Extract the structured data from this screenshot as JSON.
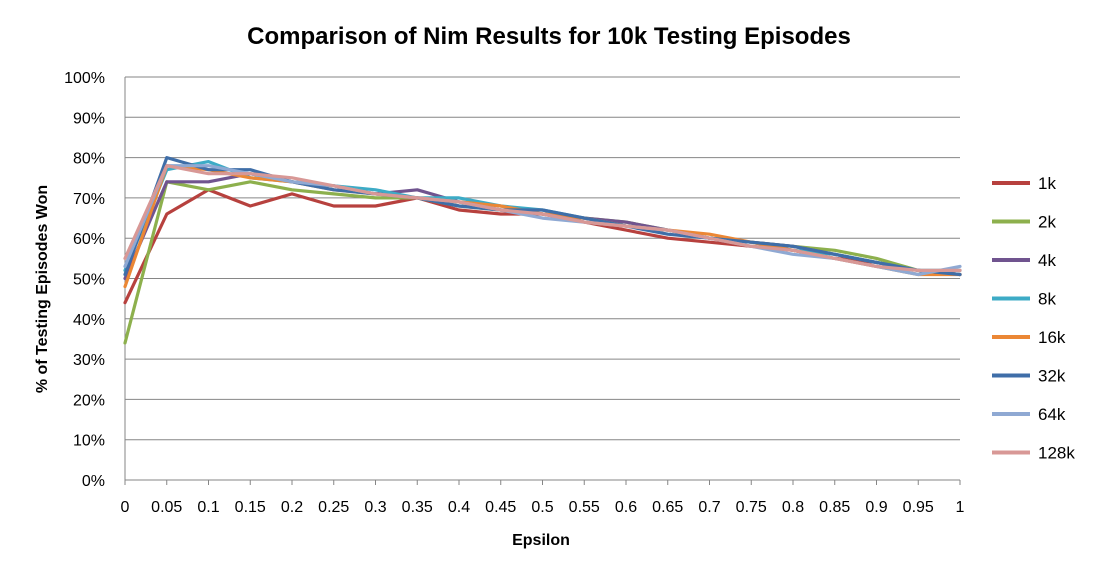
{
  "chart_data": {
    "type": "line",
    "title": "Comparison of Nim Results for 10k Testing Episodes",
    "xlabel": "Epsilon",
    "ylabel": "% of Testing Episodes Won",
    "xlim": [
      0,
      1
    ],
    "ylim": [
      0,
      100
    ],
    "x_ticks": [
      "0",
      "0.05",
      "0.1",
      "0.15",
      "0.2",
      "0.25",
      "0.3",
      "0.35",
      "0.4",
      "0.45",
      "0.5",
      "0.55",
      "0.6",
      "0.65",
      "0.7",
      "0.75",
      "0.8",
      "0.85",
      "0.9",
      "0.95",
      "1"
    ],
    "y_ticks": [
      "0%",
      "10%",
      "20%",
      "30%",
      "40%",
      "50%",
      "60%",
      "70%",
      "80%",
      "90%",
      "100%"
    ],
    "grid": "horizontal",
    "legend_position": "right",
    "x": [
      0,
      0.05,
      0.1,
      0.15,
      0.2,
      0.25,
      0.3,
      0.35,
      0.4,
      0.45,
      0.5,
      0.55,
      0.6,
      0.65,
      0.7,
      0.75,
      0.8,
      0.85,
      0.9,
      0.95,
      1
    ],
    "series": [
      {
        "name": "1k",
        "color": "#B7413E",
        "values": [
          44,
          66,
          72,
          68,
          71,
          68,
          68,
          70,
          67,
          66,
          66,
          64,
          62,
          60,
          59,
          58,
          57,
          55,
          54,
          52,
          51
        ]
      },
      {
        "name": "2k",
        "color": "#8DB04D",
        "values": [
          34,
          74,
          72,
          74,
          72,
          71,
          70,
          70,
          68,
          67,
          66,
          65,
          64,
          62,
          60,
          59,
          58,
          57,
          55,
          52,
          51
        ]
      },
      {
        "name": "4k",
        "color": "#70548F",
        "values": [
          50,
          74,
          74,
          76,
          74,
          73,
          71,
          72,
          69,
          67,
          66,
          65,
          64,
          62,
          60,
          59,
          58,
          56,
          54,
          52,
          51
        ]
      },
      {
        "name": "8k",
        "color": "#3DABC6",
        "values": [
          52,
          77,
          79,
          75,
          74,
          73,
          72,
          70,
          70,
          68,
          67,
          65,
          63,
          62,
          60,
          59,
          57,
          56,
          54,
          52,
          52
        ]
      },
      {
        "name": "16k",
        "color": "#EB8735",
        "values": [
          48,
          78,
          77,
          75,
          74,
          72,
          71,
          70,
          69,
          68,
          66,
          65,
          63,
          62,
          61,
          59,
          57,
          55,
          53,
          51,
          51
        ]
      },
      {
        "name": "32k",
        "color": "#3F6EA8",
        "values": [
          51,
          80,
          77,
          77,
          74,
          72,
          71,
          70,
          68,
          67,
          67,
          65,
          63,
          61,
          60,
          59,
          58,
          56,
          54,
          52,
          51
        ]
      },
      {
        "name": "64k",
        "color": "#8FA9D3",
        "values": [
          53,
          78,
          78,
          76,
          74,
          73,
          71,
          70,
          69,
          67,
          65,
          64,
          63,
          62,
          60,
          58,
          56,
          55,
          53,
          51,
          53
        ]
      },
      {
        "name": "128k",
        "color": "#D89896",
        "values": [
          55,
          78,
          76,
          76,
          75,
          73,
          71,
          70,
          69,
          67,
          66,
          64,
          63,
          62,
          60,
          58,
          57,
          55,
          53,
          52,
          52
        ]
      }
    ]
  }
}
